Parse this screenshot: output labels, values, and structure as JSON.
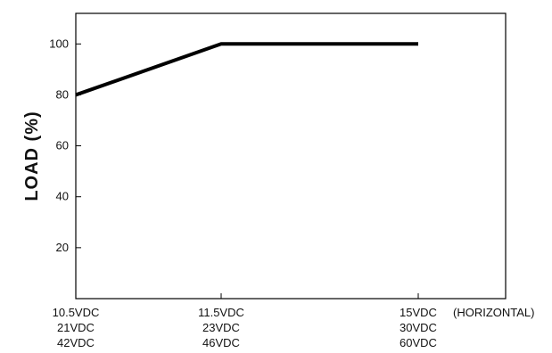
{
  "chart_data": {
    "type": "line",
    "ylabel": "LOAD (%)",
    "xlabel": "(HORIZONTAL)",
    "ylim": [
      0,
      112
    ],
    "y_ticks": [
      20,
      40,
      60,
      80,
      100
    ],
    "categories": [
      [
        "10.5VDC",
        "21VDC",
        "42VDC"
      ],
      [
        "11.5VDC",
        "23VDC",
        "46VDC"
      ],
      [
        "15VDC",
        "30VDC",
        "60VDC"
      ]
    ],
    "series": [
      {
        "values": [
          80,
          100,
          100
        ]
      }
    ],
    "grid": false,
    "line_color": "#000000"
  }
}
